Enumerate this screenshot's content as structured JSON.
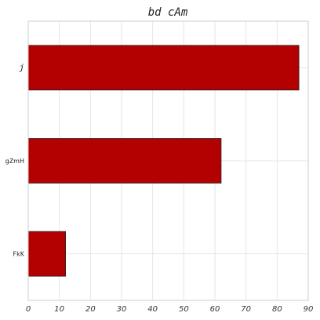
{
  "chart_data": {
    "type": "bar",
    "orientation": "horizontal",
    "title": "bd cAm",
    "xlabel": "",
    "ylabel": "",
    "categories": [
      "j",
      "gZmH",
      "FkK"
    ],
    "values": [
      87,
      62,
      12
    ],
    "xlim": [
      0,
      90
    ],
    "xticks": [
      0,
      10,
      20,
      30,
      40,
      50,
      60,
      70,
      80,
      90
    ],
    "grid": true,
    "bar_color": "#b30000"
  }
}
